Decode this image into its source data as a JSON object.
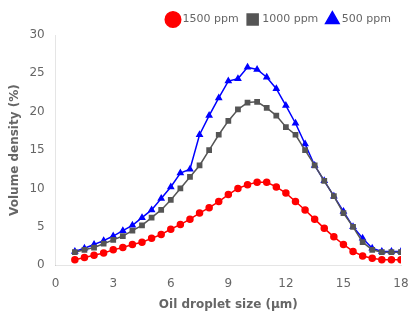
{
  "chart_data": {
    "type": "line",
    "xlabel": "Oil droplet size (μm)",
    "ylabel": "Volume density (%)",
    "xlim": [
      0,
      18
    ],
    "ylim": [
      0,
      30
    ],
    "xticks": [
      0,
      3,
      6,
      9,
      12,
      15,
      18
    ],
    "yticks": [
      0,
      5,
      10,
      15,
      20,
      25,
      30
    ],
    "grid": false,
    "legend": "upper right",
    "x": [
      1.0,
      1.5,
      2.0,
      2.5,
      3.0,
      3.5,
      4.0,
      4.5,
      5.0,
      5.5,
      6.0,
      6.5,
      7.0,
      7.5,
      8.0,
      8.5,
      9.0,
      9.5,
      10.0,
      10.5,
      11.0,
      11.5,
      12.0,
      12.5,
      13.0,
      13.5,
      14.0,
      14.5,
      15.0,
      15.5,
      16.0,
      16.5,
      17.0,
      17.5,
      18.0
    ],
    "series": [
      {
        "name": "1500 ppm",
        "color": "#ff0000",
        "marker": "circle",
        "values": [
          0.7,
          1.0,
          1.3,
          1.6,
          2.0,
          2.3,
          2.7,
          3.0,
          3.5,
          4.0,
          4.7,
          5.3,
          6.0,
          6.8,
          7.5,
          8.3,
          9.2,
          10.0,
          10.5,
          10.8,
          10.8,
          10.2,
          9.4,
          8.3,
          7.2,
          6.0,
          4.8,
          3.7,
          2.7,
          1.8,
          1.2,
          0.9,
          0.7,
          0.7,
          0.7
        ]
      },
      {
        "name": "1000 ppm",
        "color": "#555555",
        "marker": "square",
        "values": [
          1.7,
          2.0,
          2.3,
          2.8,
          3.3,
          3.8,
          4.5,
          5.2,
          6.2,
          7.2,
          8.5,
          10.0,
          11.5,
          13.0,
          15.0,
          17.0,
          18.8,
          20.3,
          21.2,
          21.3,
          20.5,
          19.5,
          18.0,
          17.0,
          15.0,
          13.0,
          11.0,
          9.0,
          6.8,
          5.0,
          3.0,
          2.0,
          1.7,
          1.7,
          1.7
        ]
      },
      {
        "name": "500 ppm",
        "color": "#0000ff",
        "marker": "triangle",
        "values": [
          1.8,
          2.2,
          2.7,
          3.2,
          3.8,
          4.5,
          5.2,
          6.2,
          7.2,
          8.7,
          10.2,
          12.0,
          12.5,
          17.0,
          19.5,
          21.8,
          24.0,
          24.3,
          25.8,
          25.5,
          24.5,
          23.0,
          20.8,
          18.5,
          15.8,
          13.0,
          11.0,
          9.0,
          7.0,
          5.0,
          3.5,
          2.2,
          1.8,
          1.8,
          1.8
        ]
      }
    ]
  }
}
